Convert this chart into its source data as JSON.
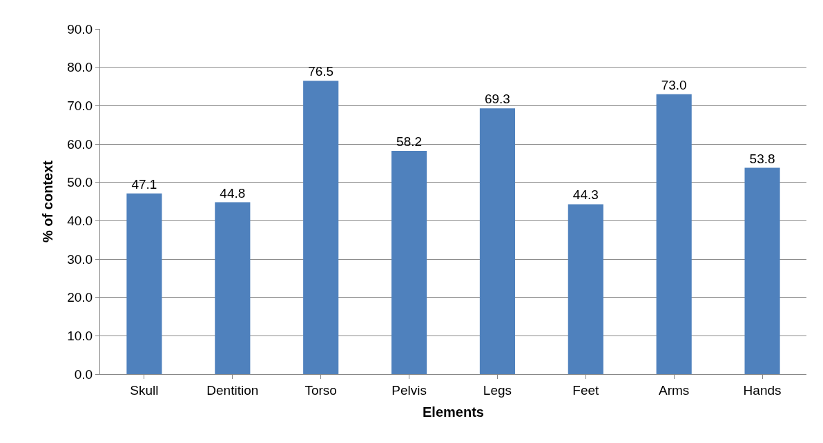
{
  "chart_data": {
    "type": "bar",
    "xlabel": "Elements",
    "ylabel": "% of context",
    "categories": [
      "Skull",
      "Dentition",
      "Torso",
      "Pelvis",
      "Legs",
      "Feet",
      "Arms",
      "Hands"
    ],
    "values": [
      47.1,
      44.8,
      76.5,
      58.2,
      69.3,
      44.3,
      73.0,
      53.8
    ],
    "value_labels": [
      "47.1",
      "44.8",
      "76.5",
      "58.2",
      "69.3",
      "44.3",
      "73.0",
      "53.8"
    ],
    "color": "#4f81bd",
    "ylim": [
      0,
      90
    ],
    "yticks": [
      {
        "value": 0,
        "label": "0.0"
      },
      {
        "value": 10,
        "label": "10.0"
      },
      {
        "value": 20,
        "label": "20.0"
      },
      {
        "value": 30,
        "label": "30.0"
      },
      {
        "value": 40,
        "label": "40.0"
      },
      {
        "value": 50,
        "label": "50.0"
      },
      {
        "value": 60,
        "label": "60.0"
      },
      {
        "value": 70,
        "label": "70.0"
      },
      {
        "value": 80,
        "label": "80.0"
      },
      {
        "value": 90,
        "label": "90.0"
      }
    ],
    "grid": "y",
    "legend": false
  }
}
